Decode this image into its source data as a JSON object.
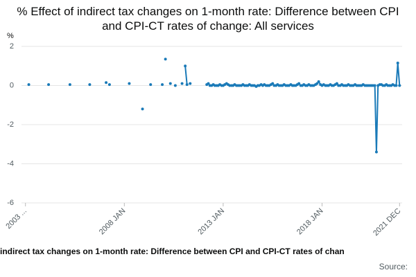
{
  "chart_data": {
    "type": "line",
    "title": "% Effect of indirect tax changes on 1-month rate: Difference between CPI and CPI-CT rates of change: All services",
    "y_unit": "%",
    "footer": "indirect tax changes on 1-month rate: Difference between CPI and CPI-CT rates of chan",
    "source": "Source:",
    "color": "#1a7ab8",
    "grid": true,
    "xlim": [
      2002.8,
      2022.05
    ],
    "ylim": [
      -6,
      2
    ],
    "yticks": [
      2,
      0,
      -2,
      -4,
      -6
    ],
    "xticks": [
      {
        "value": 2003,
        "label": "2003 ..."
      },
      {
        "value": 2008,
        "label": "2008 JAN"
      },
      {
        "value": 2013,
        "label": "2013 JAN"
      },
      {
        "value": 2018,
        "label": "2018 JAN"
      },
      {
        "value": 2021.92,
        "label": "2021 DEC"
      }
    ],
    "x": [
      2003.17,
      null,
      2004.17,
      null,
      2005.25,
      null,
      2006.25,
      null,
      2007.08,
      null,
      2007.25,
      null,
      2008.25,
      null,
      2008.92,
      null,
      2009.33,
      null,
      2009.92,
      null,
      2010.08,
      null,
      2010.33,
      null,
      2010.58,
      null,
      2010.92,
      null,
      2011.08,
      2011.17,
      null,
      2011.33,
      null,
      2012.17,
      2012.25,
      2012.33,
      2012.42,
      2012.5,
      2012.58,
      2012.67,
      2012.75,
      2012.83,
      2012.92,
      2013.0,
      2013.08,
      2013.17,
      2013.25,
      2013.33,
      2013.42,
      2013.5,
      2013.58,
      2013.67,
      2013.75,
      2013.83,
      2013.92,
      2014.0,
      2014.08,
      2014.17,
      2014.25,
      2014.33,
      2014.42,
      2014.5,
      2014.58,
      2014.67,
      2014.75,
      2014.83,
      2014.92,
      2015.0,
      2015.08,
      2015.17,
      2015.25,
      2015.33,
      2015.42,
      2015.5,
      2015.58,
      2015.67,
      2015.75,
      2015.83,
      2015.92,
      2016.0,
      2016.08,
      2016.17,
      2016.25,
      2016.33,
      2016.42,
      2016.5,
      2016.58,
      2016.67,
      2016.75,
      2016.83,
      2016.92,
      2017.0,
      2017.08,
      2017.17,
      2017.25,
      2017.33,
      2017.42,
      2017.5,
      2017.58,
      2017.67,
      2017.75,
      2017.83,
      2017.92,
      2018.0,
      2018.08,
      2018.17,
      2018.25,
      2018.33,
      2018.42,
      2018.5,
      2018.58,
      2018.67,
      2018.75,
      2018.83,
      2018.92,
      2019.0,
      2019.08,
      2019.17,
      2019.25,
      2019.33,
      2019.42,
      2019.5,
      2019.58,
      2019.67,
      2019.75,
      2019.83,
      2019.92,
      2020.0,
      2020.08,
      2020.17,
      2020.25,
      2020.33,
      2020.42,
      2020.5,
      2020.58,
      2020.67,
      2020.75,
      2020.83,
      2020.92,
      2021.0,
      2021.08,
      2021.17,
      2021.25,
      2021.33,
      2021.42,
      2021.5,
      2021.58,
      2021.67,
      2021.75,
      2021.83,
      2021.92
    ],
    "values": [
      0.05,
      null,
      0.05,
      null,
      0.05,
      null,
      0.05,
      null,
      0.15,
      null,
      0.05,
      null,
      0.1,
      null,
      -1.2,
      null,
      0.05,
      null,
      0.05,
      null,
      1.35,
      null,
      0.1,
      null,
      0,
      null,
      0.1,
      null,
      1.0,
      0.05,
      null,
      0.1,
      null,
      0.05,
      0.1,
      0,
      0,
      0.05,
      0,
      0,
      0,
      0.05,
      0,
      0,
      0.05,
      0.1,
      0.05,
      0,
      0,
      0,
      0.05,
      0,
      0,
      0,
      0,
      0.05,
      0,
      0,
      0,
      0.05,
      0,
      0,
      0,
      -0.05,
      0,
      0,
      0.05,
      0,
      0.05,
      0,
      0,
      0,
      0.05,
      0.1,
      0,
      0,
      0.05,
      0,
      0,
      0,
      0.05,
      0,
      0,
      0,
      0.05,
      0,
      0,
      0,
      0.05,
      0.1,
      0,
      0,
      0.05,
      0,
      0,
      0.05,
      0,
      0,
      0,
      0.05,
      0.1,
      0.2,
      0.05,
      0,
      0.05,
      0,
      0,
      0,
      0.05,
      0,
      0,
      0.05,
      0.1,
      0,
      0,
      0.05,
      0,
      0,
      0,
      0.05,
      0,
      0,
      0,
      0.05,
      0,
      0,
      0,
      0,
      0.05,
      0,
      0,
      0,
      0,
      0,
      0,
      0,
      -3.4,
      0,
      0.05,
      0.05,
      0,
      0,
      0.05,
      0,
      0,
      0,
      0.05,
      0,
      0,
      1.15,
      0
    ]
  }
}
